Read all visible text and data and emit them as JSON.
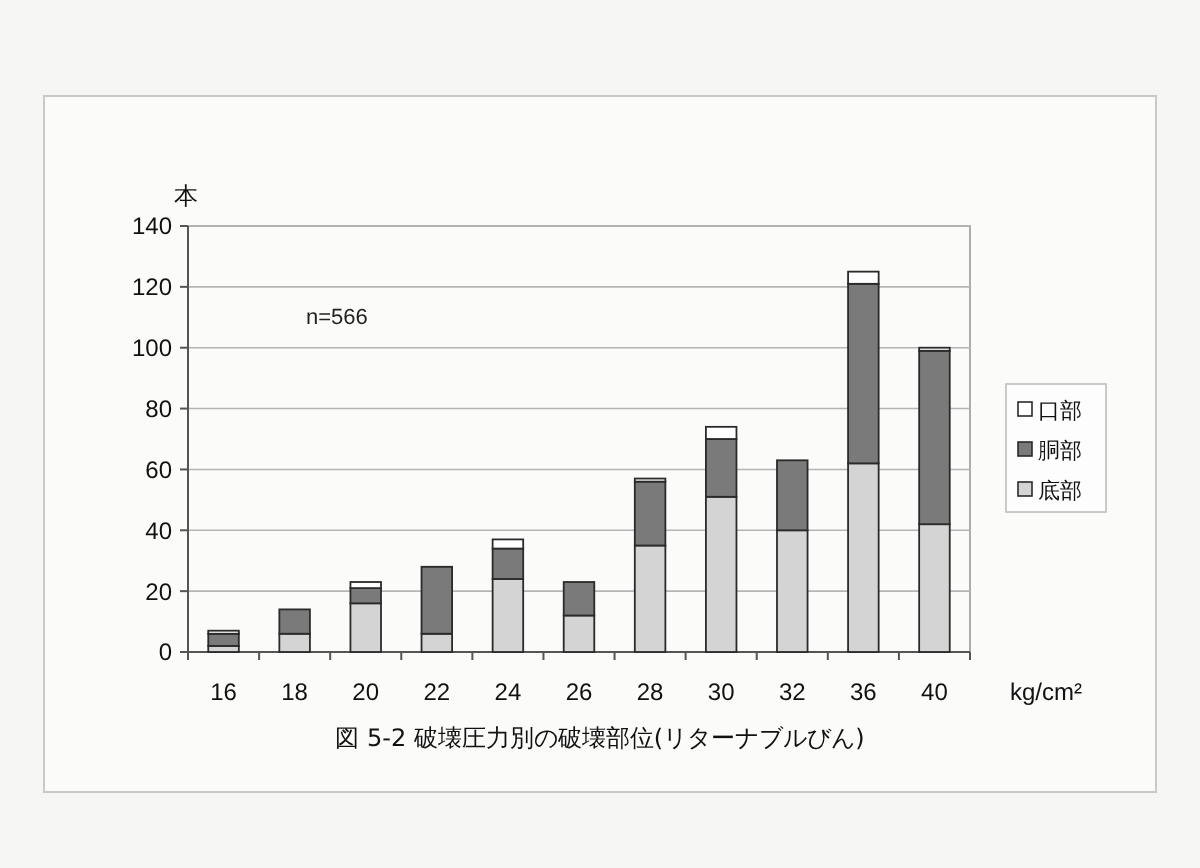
{
  "chart_data": {
    "type": "bar",
    "title": "図 5-2 破壊圧力別の破壊部位(リターナブルびん)",
    "ylabel": "本",
    "xlabel": "kg/cm²",
    "annotations": [
      "n=566"
    ],
    "categories": [
      "16",
      "18",
      "20",
      "22",
      "24",
      "26",
      "28",
      "30",
      "32",
      "36",
      "40"
    ],
    "stacked": true,
    "series": [
      {
        "name": "底部",
        "color": "#d4d4d4",
        "values": [
          2,
          6,
          16,
          6,
          24,
          12,
          35,
          51,
          40,
          62,
          42
        ]
      },
      {
        "name": "胴部",
        "color": "#7a7a7a",
        "values": [
          4,
          8,
          5,
          22,
          10,
          11,
          21,
          19,
          23,
          59,
          57
        ]
      },
      {
        "name": "口部",
        "color": "#ffffff",
        "values": [
          1,
          0,
          2,
          0,
          3,
          0,
          1,
          4,
          0,
          4,
          1
        ]
      }
    ],
    "ylim": [
      0,
      140
    ],
    "yticks": [
      0,
      20,
      40,
      60,
      80,
      100,
      120,
      140
    ],
    "grid": "y",
    "legend": "right"
  }
}
